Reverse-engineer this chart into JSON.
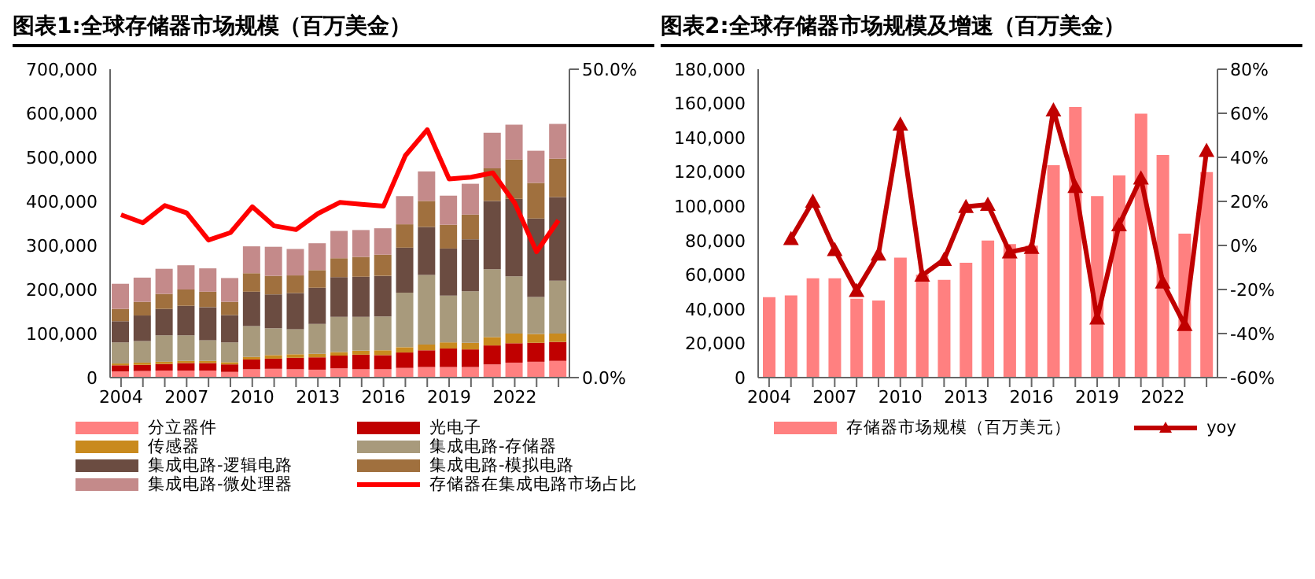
{
  "chart_data": [
    {
      "type": "bar",
      "title": "图表1:全球存储器市场规模（百万美金）",
      "stacked": true,
      "legend": "bottom",
      "categories": [
        "2004",
        null,
        null,
        "2007",
        null,
        null,
        "2010",
        null,
        null,
        "2013",
        null,
        null,
        "2016",
        null,
        null,
        "2019",
        null,
        null,
        "2022",
        null,
        null
      ],
      "series": [
        {
          "name": "分立器件",
          "color": "#ff8080",
          "values": [
            14000,
            15000,
            16000,
            16000,
            16000,
            13000,
            19000,
            20000,
            19000,
            18000,
            21000,
            19000,
            19000,
            22000,
            24000,
            24000,
            24000,
            30000,
            34000,
            36000,
            38000
          ]
        },
        {
          "name": "光电子",
          "color": "#c00000",
          "values": [
            14000,
            14000,
            15000,
            17000,
            17000,
            17000,
            22000,
            23000,
            26000,
            28000,
            29000,
            33000,
            32000,
            35000,
            38000,
            42000,
            40000,
            43000,
            44000,
            43000,
            43000
          ]
        },
        {
          "name": "传感器",
          "color": "#c98a1e",
          "values": [
            4000,
            5000,
            5000,
            5000,
            5000,
            5000,
            6000,
            8000,
            8000,
            8000,
            8000,
            9000,
            11000,
            12000,
            13000,
            14000,
            15000,
            19000,
            22000,
            20000,
            19000
          ]
        },
        {
          "name": "集成电路-存储器",
          "color": "#a89a7c",
          "values": [
            48000,
            49000,
            60000,
            58000,
            47000,
            45000,
            70000,
            61000,
            57000,
            68000,
            80000,
            77000,
            77000,
            124000,
            158000,
            106000,
            117000,
            154000,
            130000,
            84000,
            120000
          ]
        },
        {
          "name": "集成电路-逻辑电路",
          "color": "#6b4c41",
          "values": [
            48000,
            58000,
            60000,
            67000,
            75000,
            62000,
            78000,
            77000,
            82000,
            82000,
            90000,
            91000,
            92000,
            102000,
            109000,
            107000,
            118000,
            155000,
            176000,
            178000,
            190000
          ]
        },
        {
          "name": "集成电路-模拟电路",
          "color": "#a0703e",
          "values": [
            28000,
            31000,
            34000,
            37000,
            35000,
            30000,
            42000,
            42000,
            40000,
            40000,
            43000,
            45000,
            48000,
            53000,
            59000,
            54000,
            56000,
            74000,
            89000,
            81000,
            87000
          ]
        },
        {
          "name": "集成电路-微处理器",
          "color": "#c48a8a",
          "values": [
            57000,
            55000,
            57000,
            55000,
            53000,
            54000,
            61000,
            66000,
            60000,
            61000,
            62000,
            61000,
            60000,
            64000,
            67000,
            66000,
            70000,
            81000,
            79000,
            73000,
            79000
          ]
        },
        {
          "name": "存储器在集成电路市场占比",
          "type": "line",
          "axis": "y2",
          "color": "#ff0000",
          "values": [
            26.4,
            25.1,
            27.9,
            26.7,
            22.3,
            23.5,
            27.7,
            24.6,
            24.0,
            26.6,
            28.4,
            28.1,
            27.8,
            36.0,
            40.2,
            32.2,
            32.5,
            33.2,
            28.3,
            20.4,
            25.5
          ]
        }
      ],
      "ylim": [
        0,
        700000
      ],
      "yticks": [
        {
          "value": 0,
          "label": "0"
        },
        {
          "value": 100000,
          "label": "100,000"
        },
        {
          "value": 200000,
          "label": "200,000"
        },
        {
          "value": 300000,
          "label": "300,000"
        },
        {
          "value": 400000,
          "label": "400,000"
        },
        {
          "value": 500000,
          "label": "500,000"
        },
        {
          "value": 600000,
          "label": "600,000"
        },
        {
          "value": 700000,
          "label": "700,000"
        }
      ],
      "y2lim": [
        0,
        50
      ],
      "y2ticks": [
        {
          "value": 0,
          "label": "0.0%"
        },
        {
          "value": 50,
          "label": "50.0%"
        }
      ]
    },
    {
      "type": "bar",
      "title": "图表2:全球存储器市场规模及增速（百万美金）",
      "legend": "bottom",
      "categories": [
        "2004",
        null,
        null,
        "2007",
        null,
        null,
        "2010",
        null,
        null,
        "2013",
        null,
        null,
        "2016",
        null,
        null,
        "2019",
        null,
        null,
        "2022",
        null,
        null
      ],
      "series": [
        {
          "name": "存储器市场规模（百万美元）",
          "color": "#ff8080",
          "values": [
            47000,
            48000,
            58000,
            58000,
            46000,
            45000,
            70000,
            60000,
            57000,
            67000,
            80000,
            78000,
            77000,
            124000,
            158000,
            106000,
            118000,
            154000,
            130000,
            84000,
            120000
          ]
        },
        {
          "name": "yoy",
          "type": "line",
          "axis": "y2",
          "color": "#c00000",
          "marker": "triangle",
          "values": [
            null,
            3,
            20,
            -2,
            -20.5,
            -4,
            55,
            -13.6,
            -6.4,
            17.6,
            18.6,
            -3,
            -1,
            61.4,
            26.7,
            -33,
            9.3,
            30.5,
            -16.7,
            -36,
            43
          ]
        }
      ],
      "ylim": [
        0,
        180000
      ],
      "yticks": [
        {
          "value": 0,
          "label": "0"
        },
        {
          "value": 20000,
          "label": "20,000"
        },
        {
          "value": 40000,
          "label": "40,000"
        },
        {
          "value": 60000,
          "label": "60,000"
        },
        {
          "value": 80000,
          "label": "80,000"
        },
        {
          "value": 100000,
          "label": "100,000"
        },
        {
          "value": 120000,
          "label": "120,000"
        },
        {
          "value": 140000,
          "label": "140,000"
        },
        {
          "value": 160000,
          "label": "160,000"
        },
        {
          "value": 180000,
          "label": "180,000"
        }
      ],
      "y2lim": [
        -60,
        80
      ],
      "y2ticks": [
        {
          "value": -60,
          "label": "-60%"
        },
        {
          "value": -40,
          "label": "-40%"
        },
        {
          "value": -20,
          "label": "-20%"
        },
        {
          "value": 0,
          "label": "0%"
        },
        {
          "value": 20,
          "label": "20%"
        },
        {
          "value": 40,
          "label": "40%"
        },
        {
          "value": 60,
          "label": "60%"
        },
        {
          "value": 80,
          "label": "80%"
        }
      ]
    }
  ]
}
